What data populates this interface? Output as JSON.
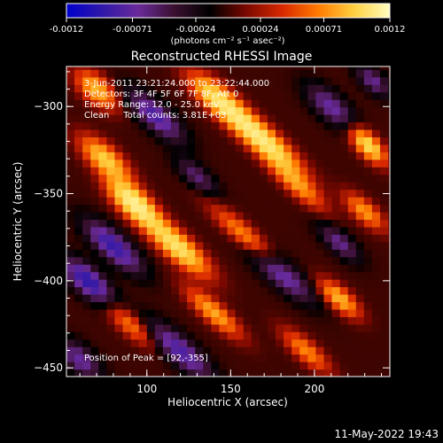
{
  "chart_data": {
    "type": "heatmap",
    "title": "Reconstructed RHESSI Image",
    "xlabel": "Heliocentric X (arcsec)",
    "ylabel": "Heliocentric Y (arcsec)",
    "xlim": [
      52,
      245
    ],
    "ylim": [
      -455,
      -277
    ],
    "xticks": [
      100,
      150,
      200
    ],
    "yticks": [
      -300,
      -350,
      -400,
      -450
    ],
    "colorbar": {
      "label": "(photons cm⁻² s⁻¹ asec⁻²)",
      "range": [
        -0.0012,
        0.0012
      ],
      "ticks": [
        "-0.0012",
        "-0.00071",
        "-0.00024",
        "0.00024",
        "0.00071",
        "0.0012"
      ],
      "tick_values": [
        -0.0012,
        -0.00071,
        -0.00024,
        0.00024,
        0.00071,
        0.0012
      ],
      "colors": [
        "#0000cc",
        "#3018a8",
        "#6a2a9a",
        "#3a1030",
        "#000000",
        "#7a0800",
        "#d82800",
        "#ff7a00",
        "#ffd040",
        "#ffffc0"
      ]
    },
    "annotations": [
      "3-Jun-2011 23:21:24.000 to 23:22:44.000",
      "Detectors: 3F 4F 5F 6F 7F 8F, Att 0",
      "Energy Range: 12.0 - 25.0 keV",
      "Clean     Total counts: 3.81E+03",
      "Position of Peak = [92,-355]"
    ],
    "peak": {
      "x": 92,
      "y": -355
    },
    "sources": [
      {
        "x": 92,
        "y": -355,
        "amp": 1.0,
        "sx": 12,
        "sy": 5,
        "angle": -40
      },
      {
        "x": 118,
        "y": -380,
        "amp": 0.85,
        "sx": 16,
        "sy": 5,
        "angle": -40
      },
      {
        "x": 75,
        "y": -330,
        "amp": 0.7,
        "sx": 12,
        "sy": 5,
        "angle": -40
      },
      {
        "x": 168,
        "y": -318,
        "amp": 0.95,
        "sx": 20,
        "sy": 5,
        "angle": -40
      },
      {
        "x": 142,
        "y": -295,
        "amp": 0.7,
        "sx": 14,
        "sy": 5,
        "angle": -40
      },
      {
        "x": 232,
        "y": -322,
        "amp": 0.8,
        "sx": 9,
        "sy": 4,
        "angle": -45
      },
      {
        "x": 70,
        "y": -290,
        "amp": 0.6,
        "sx": 10,
        "sy": 5,
        "angle": -40
      },
      {
        "x": 160,
        "y": -375,
        "amp": 0.5,
        "sx": 18,
        "sy": 4,
        "angle": -40
      },
      {
        "x": 190,
        "y": -345,
        "amp": 0.45,
        "sx": 14,
        "sy": 4,
        "angle": -40
      },
      {
        "x": 140,
        "y": -418,
        "amp": 0.55,
        "sx": 14,
        "sy": 4,
        "angle": -40
      },
      {
        "x": 90,
        "y": -425,
        "amp": 0.4,
        "sx": 12,
        "sy": 4,
        "angle": -40
      },
      {
        "x": 215,
        "y": -410,
        "amp": 0.6,
        "sx": 10,
        "sy": 4,
        "angle": -40
      },
      {
        "x": 195,
        "y": -440,
        "amp": 0.45,
        "sx": 12,
        "sy": 4,
        "angle": -40
      },
      {
        "x": 230,
        "y": -360,
        "amp": 0.5,
        "sx": 10,
        "sy": 4,
        "angle": -40
      },
      {
        "x": 105,
        "y": -305,
        "amp": -0.55,
        "sx": 14,
        "sy": 5,
        "angle": -40
      },
      {
        "x": 80,
        "y": -380,
        "amp": -0.65,
        "sx": 14,
        "sy": 5,
        "angle": -40
      },
      {
        "x": 65,
        "y": -400,
        "amp": -0.7,
        "sx": 12,
        "sy": 5,
        "angle": -40
      },
      {
        "x": 180,
        "y": -395,
        "amp": -0.55,
        "sx": 16,
        "sy": 5,
        "angle": -40
      },
      {
        "x": 210,
        "y": -300,
        "amp": -0.45,
        "sx": 12,
        "sy": 5,
        "angle": -40
      },
      {
        "x": 120,
        "y": -440,
        "amp": -0.55,
        "sx": 16,
        "sy": 5,
        "angle": -40
      },
      {
        "x": 215,
        "y": -378,
        "amp": -0.4,
        "sx": 10,
        "sy": 4,
        "angle": -40
      },
      {
        "x": 130,
        "y": -340,
        "amp": -0.35,
        "sx": 10,
        "sy": 4,
        "angle": -40
      },
      {
        "x": 60,
        "y": -445,
        "amp": -0.45,
        "sx": 10,
        "sy": 5,
        "angle": -40
      },
      {
        "x": 235,
        "y": -285,
        "amp": -0.4,
        "sx": 8,
        "sy": 4,
        "angle": -40
      }
    ]
  },
  "footer": {
    "timestamp": "11-May-2022 19:43"
  }
}
